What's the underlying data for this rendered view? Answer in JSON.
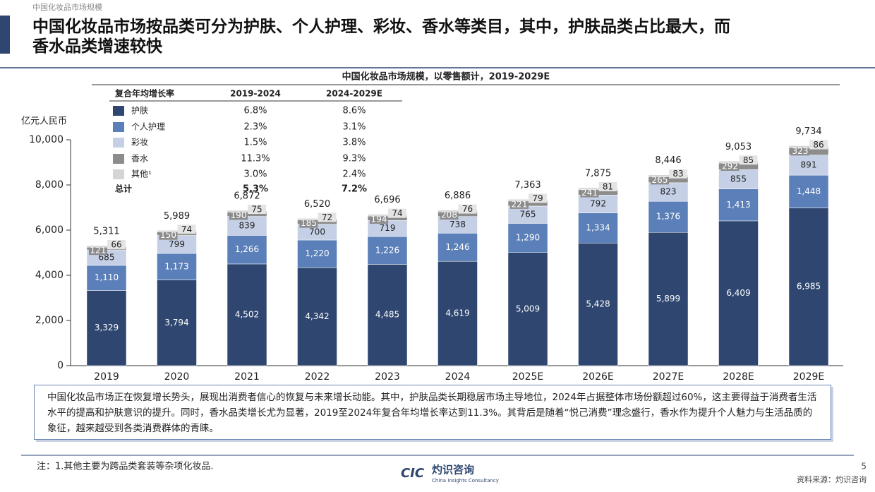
{
  "header": {
    "section": "中国化妆品市场规模",
    "title_lines": [
      "中国化妆品市场按品类可分为护肤、个人护理、彩妆、香水等类目，其中，护肤品类占比最大，而",
      "香水品类增速较快"
    ]
  },
  "cagr_table": {
    "header": [
      "复合年均增长率",
      "2019-2024",
      "2024-2029E"
    ],
    "rows": [
      [
        "6.8%",
        "8.6%"
      ],
      [
        "2.3%",
        "3.1%"
      ],
      [
        "1.5%",
        "3.8%"
      ],
      [
        "11.3%",
        "9.3%"
      ],
      [
        "3.0%",
        "2.4%"
      ]
    ],
    "total": {
      "label": "总计",
      "values": [
        "5.3%",
        "7.2%"
      ]
    }
  },
  "chart_data": {
    "type": "bar",
    "stacked": true,
    "title": "中国化妆品市场规模，以零售额计，2019-2029E",
    "y_label": "亿元人民币",
    "categories": [
      "2019",
      "2020",
      "2021",
      "2022",
      "2023",
      "2024",
      "2025E",
      "2026E",
      "2027E",
      "2028E",
      "2029E"
    ],
    "series": [
      {
        "name": "护肤",
        "color": "#2e4670",
        "values": [
          3329,
          3794,
          4502,
          4342,
          4485,
          4619,
          5009,
          5428,
          5899,
          6409,
          6985
        ],
        "value_labels": [
          "3,329",
          "3,794",
          "4,502",
          "4,342",
          "4,485",
          "4,619",
          "5,009",
          "5,428",
          "5,899",
          "6,409",
          "6,985"
        ]
      },
      {
        "name": "个人护理",
        "color": "#5b7fb8",
        "values": [
          1110,
          1173,
          1266,
          1220,
          1226,
          1246,
          1290,
          1334,
          1376,
          1413,
          1448
        ],
        "value_labels": [
          "1,110",
          "1,173",
          "1,266",
          "1,220",
          "1,226",
          "1,246",
          "1,290",
          "1,334",
          "1,376",
          "1,413",
          "1,448"
        ]
      },
      {
        "name": "彩妆",
        "color": "#c5d0e6",
        "values": [
          685,
          799,
          839,
          700,
          719,
          738,
          765,
          792,
          823,
          855,
          891
        ]
      },
      {
        "name": "香水",
        "color": "#8c8c8c",
        "values": [
          121,
          150,
          190,
          185,
          194,
          208,
          221,
          241,
          265,
          292,
          323
        ]
      },
      {
        "name": "其他¹",
        "color": "#d4d4d4",
        "values": [
          66,
          74,
          75,
          72,
          74,
          76,
          79,
          81,
          83,
          85,
          86
        ]
      }
    ],
    "totals": [
      5311,
      5989,
      6872,
      6520,
      6696,
      6886,
      7363,
      7875,
      8446,
      9053,
      9734
    ],
    "total_labels": [
      "5,311",
      "5,989",
      "6,872",
      "6,520",
      "6,696",
      "6,886",
      "7,363",
      "7,875",
      "8,446",
      "9,053",
      "9,734"
    ],
    "ylim": [
      0,
      10000
    ],
    "yticks": [
      0,
      {
        "value": 2000,
        "label": "2,000"
      },
      {
        "value": 4000,
        "label": "4,000"
      },
      {
        "value": 6000,
        "label": "6,000"
      },
      {
        "value": 8000,
        "label": "8,000"
      },
      {
        "value": 10000,
        "label": "10,000"
      }
    ]
  },
  "commentary": "中国化妆品市场正在恢复增长势头，展现出消费者信心的恢复与未来增长动能。其中，护肤品类长期稳居市场主导地位，2024年占据整体市场份额超过60%，这主要得益于消费者生活水平的提高和护肤意识的提升。同时，香水品类增长尤为显著，2019至2024年复合年均增长率达到11.3%。其背后是随着“悦己消费”理念盛行，香水作为提升个人魅力与生活品质的象征，越来越受到各类消费群体的青睐。",
  "footnote": "注：1.其他主要为跨品类套装等杂项化妆品.",
  "logo": {
    "mark": "CIC",
    "name": "灼识咨询",
    "sub": "China Insights Consultancy"
  },
  "page": "5",
  "source": "资料来源：灼识咨询"
}
